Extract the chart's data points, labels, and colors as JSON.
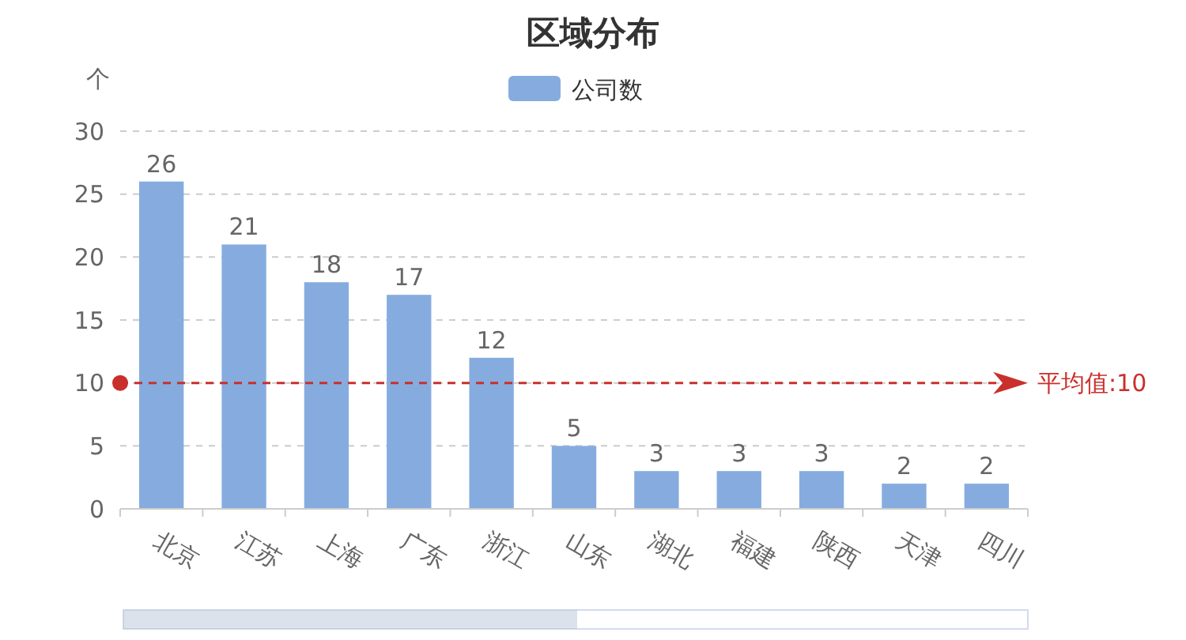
{
  "chart_data": {
    "type": "bar",
    "title": "区域分布",
    "ylabel": "个",
    "categories": [
      "北京",
      "江苏",
      "上海",
      "广东",
      "浙江",
      "山东",
      "湖北",
      "福建",
      "陕西",
      "天津",
      "四川"
    ],
    "series": [
      {
        "name": "公司数",
        "color": "#86acdf",
        "values": [
          26,
          21,
          18,
          17,
          12,
          5,
          3,
          3,
          3,
          2,
          2
        ]
      }
    ],
    "ylim": [
      0,
      30
    ],
    "yticks": [
      0,
      5,
      10,
      15,
      20,
      25,
      30
    ],
    "grid": "y",
    "legend": "top",
    "data_labels": true,
    "ref_lines": [
      {
        "axis": "y",
        "value": 10,
        "label": "平均值:10",
        "color": "#c9302c",
        "line_style": "dashed"
      }
    ]
  }
}
